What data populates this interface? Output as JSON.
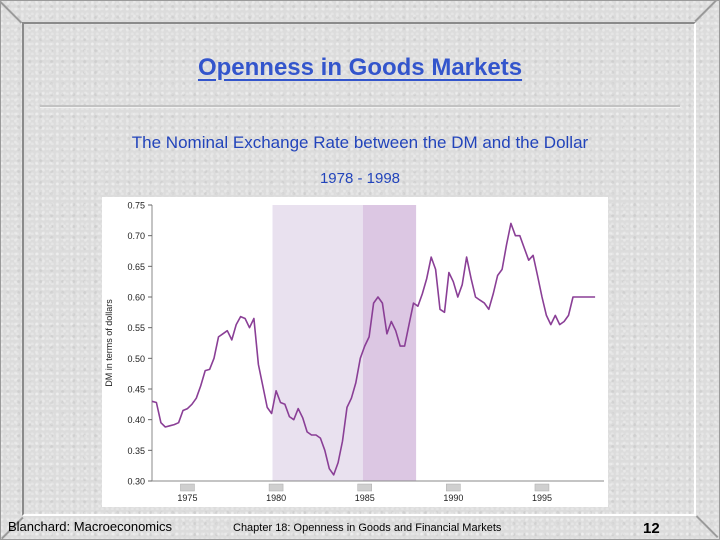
{
  "slide": {
    "title": "Openness in Goods Markets",
    "subtitle": "The Nominal Exchange Rate between the DM and the Dollar",
    "years": "1978 - 1998",
    "footer_left": "Blanchard: Macroeconomics",
    "footer_center": "Chapter 18:  Openness in Goods and Financial Markets",
    "page_number": "12"
  },
  "chart_data": {
    "type": "line",
    "title": "",
    "xlabel": "",
    "ylabel": "DM in terms of dollars",
    "xlim": [
      1973.0,
      1998.5
    ],
    "ylim": [
      0.3,
      0.75
    ],
    "x_ticks": [
      "1975",
      "1980",
      "1985",
      "1990",
      "1995"
    ],
    "y_ticks": [
      "0.75",
      "0.70",
      "0.65",
      "0.60",
      "0.55",
      "0.50",
      "0.45",
      "0.40",
      "0.35",
      "0.30"
    ],
    "shaded_regions": [
      {
        "from": 1979.8,
        "to": 1984.9,
        "color": "#e9e1ef"
      },
      {
        "from": 1984.9,
        "to": 1987.9,
        "color": "#dcc7e3"
      }
    ],
    "recession_year_marks": [
      1975,
      1980,
      1985,
      1990,
      1995
    ],
    "line_color": "#8a3f96",
    "series": [
      {
        "x": [
          1973.0,
          1973.25,
          1973.5,
          1973.75,
          1974.0,
          1974.25,
          1974.5,
          1974.75,
          1975.0,
          1975.25,
          1975.5,
          1975.75,
          1976.0,
          1976.25,
          1976.5,
          1976.75,
          1977.0,
          1977.25,
          1977.5,
          1977.75,
          1978.0,
          1978.25,
          1978.5,
          1978.75,
          1979.0,
          1979.25,
          1979.5,
          1979.75,
          1980.0,
          1980.25,
          1980.5,
          1980.75,
          1981.0,
          1981.25,
          1981.5,
          1981.75,
          1982.0,
          1982.25,
          1982.5,
          1982.75,
          1983.0,
          1983.25,
          1983.5,
          1983.75,
          1984.0,
          1984.25,
          1984.5,
          1984.75,
          1985.0,
          1985.25,
          1985.5,
          1985.75,
          1986.0,
          1986.25,
          1986.5,
          1986.75,
          1987.0,
          1987.25,
          1987.5,
          1987.75,
          1988.0,
          1988.25,
          1988.5,
          1988.75,
          1989.0,
          1989.25,
          1989.5,
          1989.75,
          1990.0,
          1990.25,
          1990.5,
          1990.75,
          1991.0,
          1991.25,
          1991.5,
          1991.75,
          1992.0,
          1992.25,
          1992.5,
          1992.75,
          1993.0,
          1993.25,
          1993.5,
          1993.75,
          1994.0,
          1994.25,
          1994.5,
          1994.75,
          1995.0,
          1995.25,
          1995.5,
          1995.75,
          1996.0,
          1996.25,
          1996.5,
          1996.75,
          1997.0,
          1997.25,
          1997.5,
          1997.75,
          1998.0
        ],
        "y": [
          0.43,
          0.428,
          0.395,
          0.388,
          0.39,
          0.392,
          0.395,
          0.415,
          0.418,
          0.425,
          0.435,
          0.455,
          0.48,
          0.482,
          0.5,
          0.535,
          0.54,
          0.545,
          0.53,
          0.555,
          0.568,
          0.565,
          0.55,
          0.565,
          0.49,
          0.455,
          0.42,
          0.41,
          0.447,
          0.428,
          0.425,
          0.405,
          0.4,
          0.418,
          0.403,
          0.38,
          0.375,
          0.375,
          0.37,
          0.35,
          0.32,
          0.31,
          0.33,
          0.365,
          0.42,
          0.435,
          0.46,
          0.5,
          0.52,
          0.535,
          0.59,
          0.6,
          0.59,
          0.54,
          0.56,
          0.545,
          0.52,
          0.52,
          0.555,
          0.59,
          0.585,
          0.605,
          0.63,
          0.665,
          0.645,
          0.58,
          0.575,
          0.64,
          0.625,
          0.6,
          0.62,
          0.665,
          0.63,
          0.6,
          0.595,
          0.59,
          0.58,
          0.605,
          0.635,
          0.645,
          0.685,
          0.72,
          0.7,
          0.7,
          0.68,
          0.66,
          0.668,
          0.635,
          0.6,
          0.57,
          0.555,
          0.57,
          0.555,
          0.56,
          0.57,
          0.6,
          0.6,
          0.6,
          0.6,
          0.6,
          0.6
        ]
      }
    ]
  }
}
